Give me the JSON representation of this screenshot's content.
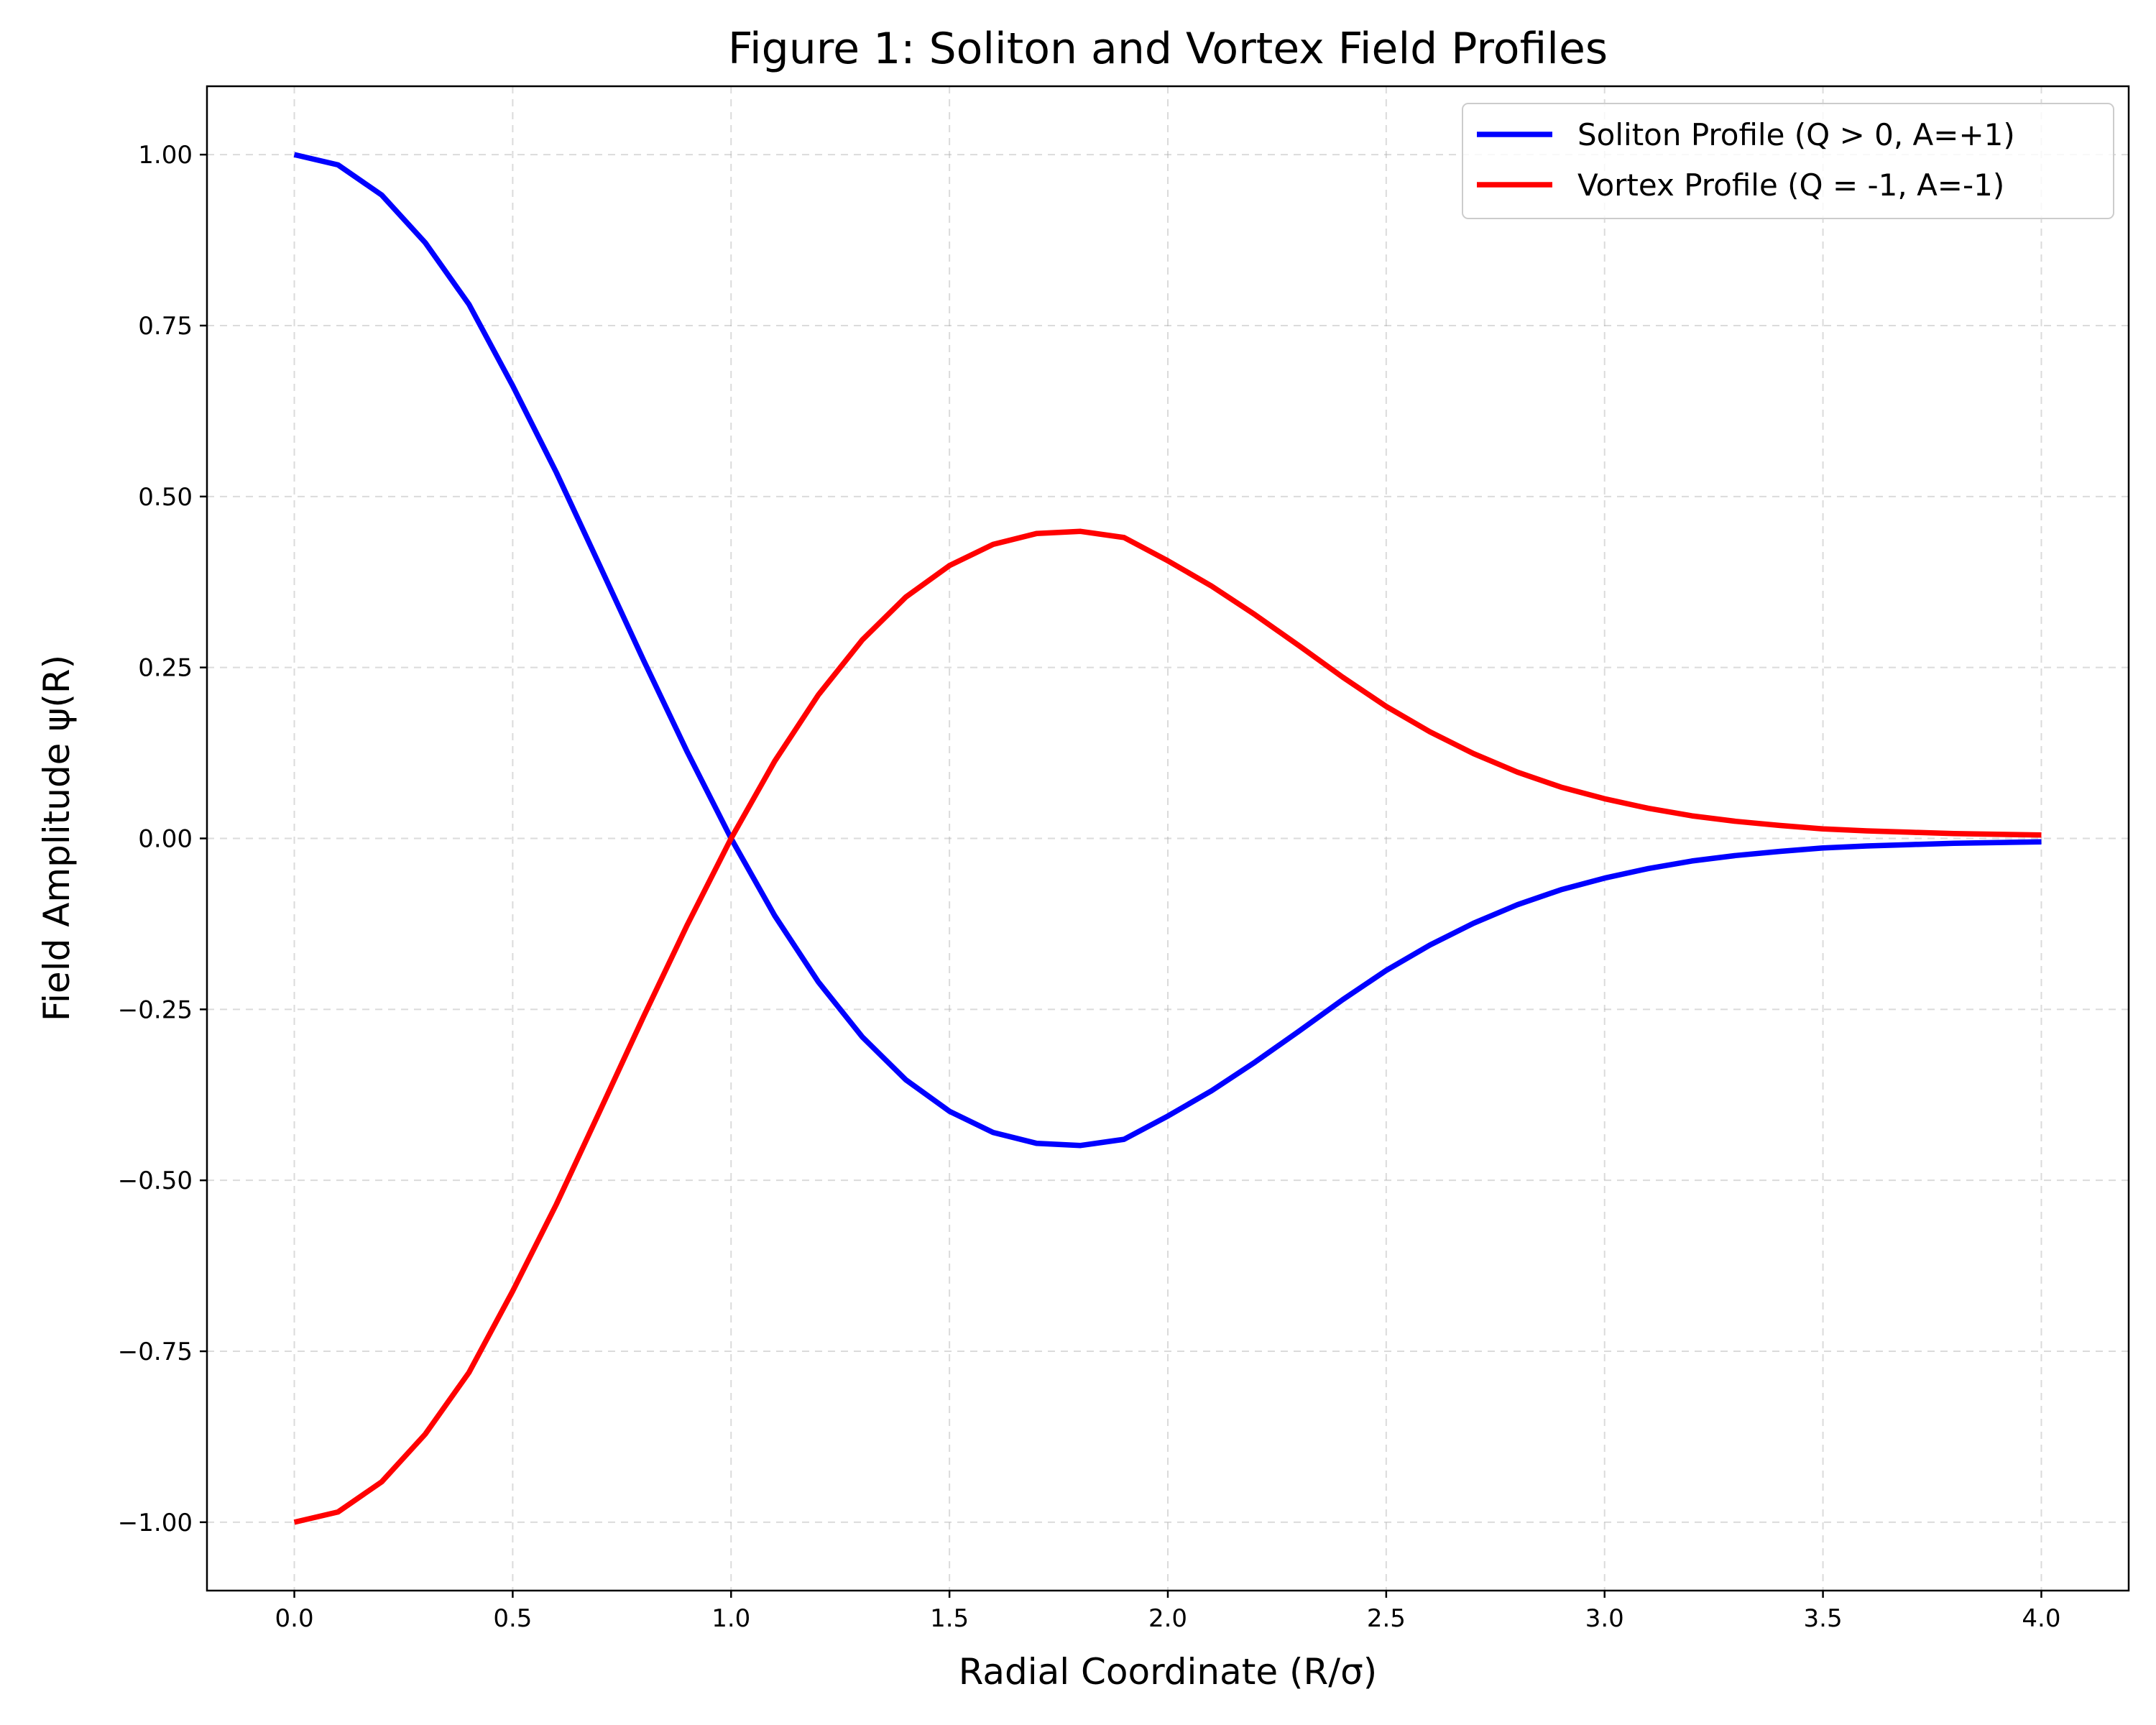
{
  "chart_data": {
    "type": "line",
    "title": "Figure 1: Soliton and Vortex Field Profiles",
    "xlabel": "Radial Coordinate (R/σ)",
    "ylabel": "Field Amplitude ψ(R)",
    "xlim": [
      -0.2,
      4.2
    ],
    "ylim": [
      -1.1,
      1.1
    ],
    "xticks": [
      0.0,
      0.5,
      1.0,
      1.5,
      2.0,
      2.5,
      3.0,
      3.5,
      4.0
    ],
    "xtick_labels": [
      "0.0",
      "0.5",
      "1.0",
      "1.5",
      "2.0",
      "2.5",
      "3.0",
      "3.5",
      "4.0"
    ],
    "yticks": [
      1.0,
      0.75,
      0.5,
      0.25,
      0.0,
      -0.25,
      -0.5,
      -0.75,
      -1.0
    ],
    "ytick_labels": [
      "1.00",
      "0.75",
      "0.50",
      "0.25",
      "0.00",
      "−0.25",
      "−0.50",
      "−0.75",
      "−1.00"
    ],
    "grid": true,
    "legend_position": "top-right",
    "x": [
      0.0,
      0.1,
      0.2,
      0.3,
      0.4,
      0.5,
      0.6,
      0.7,
      0.8,
      0.9,
      1.0,
      1.1,
      1.2,
      1.3,
      1.4,
      1.5,
      1.6,
      1.7,
      1.8,
      1.9,
      2.0,
      2.1,
      2.2,
      2.3,
      2.4,
      2.5,
      2.6,
      2.7,
      2.8,
      2.9,
      3.0,
      3.1,
      3.2,
      3.3,
      3.4,
      3.5,
      3.6,
      3.7,
      3.8,
      3.9,
      4.0
    ],
    "series": [
      {
        "name": "Soliton Profile (Q > 0, A=+1)",
        "color": "#0000ff",
        "values": [
          1.0,
          0.985,
          0.941,
          0.871,
          0.781,
          0.662,
          0.535,
          0.398,
          0.26,
          0.126,
          0.0,
          -0.113,
          -0.21,
          -0.29,
          -0.353,
          -0.399,
          -0.43,
          -0.446,
          -0.449,
          -0.44,
          -0.406,
          -0.369,
          -0.327,
          -0.282,
          -0.236,
          -0.193,
          -0.156,
          -0.124,
          -0.097,
          -0.075,
          -0.058,
          -0.044,
          -0.033,
          -0.025,
          -0.019,
          -0.014,
          -0.011,
          -0.009,
          -0.007,
          -0.006,
          -0.005
        ]
      },
      {
        "name": "Vortex Profile (Q = -1, A=-1)",
        "color": "#ff0000",
        "values": [
          -1.0,
          -0.985,
          -0.941,
          -0.871,
          -0.781,
          -0.662,
          -0.535,
          -0.398,
          -0.26,
          -0.126,
          0.0,
          0.113,
          0.21,
          0.29,
          0.353,
          0.399,
          0.43,
          0.446,
          0.449,
          0.44,
          0.406,
          0.369,
          0.327,
          0.282,
          0.236,
          0.193,
          0.156,
          0.124,
          0.097,
          0.075,
          0.058,
          0.044,
          0.033,
          0.025,
          0.019,
          0.014,
          0.011,
          0.009,
          0.007,
          0.006,
          0.005
        ]
      }
    ]
  }
}
